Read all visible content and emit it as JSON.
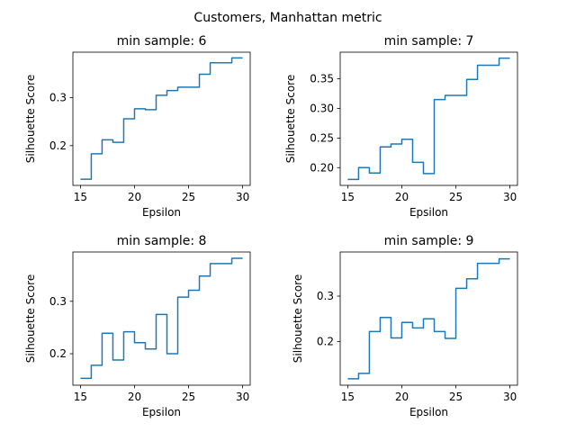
{
  "figure": {
    "suptitle": "Customers, Manhattan metric"
  },
  "colors": {
    "line": "#1f77b4",
    "axes": "#000000",
    "background": "#ffffff"
  },
  "chart_data": [
    {
      "type": "line",
      "title": "min sample: 6",
      "xlabel": "Epsilon",
      "ylabel": "Silhouette Score",
      "xlim": [
        14.3,
        30.7
      ],
      "ylim": [
        0.117,
        0.395
      ],
      "xticks": [
        15,
        20,
        25,
        30
      ],
      "xtick_labels": [
        "15",
        "20",
        "25",
        "30"
      ],
      "yticks": [
        0.2,
        0.3
      ],
      "ytick_labels": [
        "0.2",
        "0.3"
      ],
      "grid": false,
      "legend": "none",
      "series": [
        {
          "step": "post",
          "x": [
            15,
            16,
            17,
            18,
            19,
            20,
            21,
            22,
            23,
            24,
            26,
            27,
            29,
            30
          ],
          "y": [
            0.13,
            0.183,
            0.212,
            0.207,
            0.256,
            0.277,
            0.275,
            0.305,
            0.315,
            0.322,
            0.349,
            0.373,
            0.383,
            0.383
          ]
        }
      ]
    },
    {
      "type": "line",
      "title": "min sample: 7",
      "xlabel": "Epsilon",
      "ylabel": "Silhouette Score",
      "xlim": [
        14.3,
        30.7
      ],
      "ylim": [
        0.17,
        0.395
      ],
      "xticks": [
        15,
        20,
        25,
        30
      ],
      "xtick_labels": [
        "15",
        "20",
        "25",
        "30"
      ],
      "yticks": [
        0.2,
        0.25,
        0.3,
        0.35
      ],
      "ytick_labels": [
        "0.20",
        "0.25",
        "0.30",
        "0.35"
      ],
      "grid": false,
      "legend": "none",
      "series": [
        {
          "step": "post",
          "x": [
            15,
            16,
            17,
            18,
            19,
            20,
            21,
            22,
            23,
            24,
            26,
            27,
            29,
            30
          ],
          "y": [
            0.18,
            0.2,
            0.191,
            0.235,
            0.24,
            0.248,
            0.209,
            0.19,
            0.315,
            0.322,
            0.349,
            0.373,
            0.385,
            0.385
          ]
        }
      ]
    },
    {
      "type": "line",
      "title": "min sample: 8",
      "xlabel": "Epsilon",
      "ylabel": "Silhouette Score",
      "xlim": [
        14.3,
        30.7
      ],
      "ylim": [
        0.14,
        0.394
      ],
      "xticks": [
        15,
        20,
        25,
        30
      ],
      "xtick_labels": [
        "15",
        "20",
        "25",
        "30"
      ],
      "yticks": [
        0.2,
        0.3
      ],
      "ytick_labels": [
        "0.2",
        "0.3"
      ],
      "grid": false,
      "legend": "none",
      "series": [
        {
          "step": "post",
          "x": [
            15,
            16,
            17,
            18,
            19,
            20,
            21,
            22,
            23,
            24,
            25,
            26,
            27,
            29,
            30
          ],
          "y": [
            0.153,
            0.178,
            0.239,
            0.188,
            0.242,
            0.221,
            0.209,
            0.275,
            0.2,
            0.308,
            0.321,
            0.348,
            0.372,
            0.382,
            0.382
          ]
        }
      ]
    },
    {
      "type": "line",
      "title": "min sample: 9",
      "xlabel": "Epsilon",
      "ylabel": "Silhouette Score",
      "xlim": [
        14.3,
        30.7
      ],
      "ylim": [
        0.104,
        0.397
      ],
      "xticks": [
        15,
        20,
        25,
        30
      ],
      "xtick_labels": [
        "15",
        "20",
        "25",
        "30"
      ],
      "yticks": [
        0.2,
        0.3
      ],
      "ytick_labels": [
        "0.2",
        "0.3"
      ],
      "grid": false,
      "legend": "none",
      "series": [
        {
          "step": "post",
          "x": [
            15,
            16,
            17,
            18,
            19,
            20,
            21,
            22,
            23,
            24,
            25,
            26,
            27,
            29,
            30
          ],
          "y": [
            0.118,
            0.13,
            0.222,
            0.253,
            0.208,
            0.242,
            0.23,
            0.25,
            0.222,
            0.207,
            0.317,
            0.338,
            0.372,
            0.382,
            0.382
          ]
        }
      ]
    }
  ]
}
